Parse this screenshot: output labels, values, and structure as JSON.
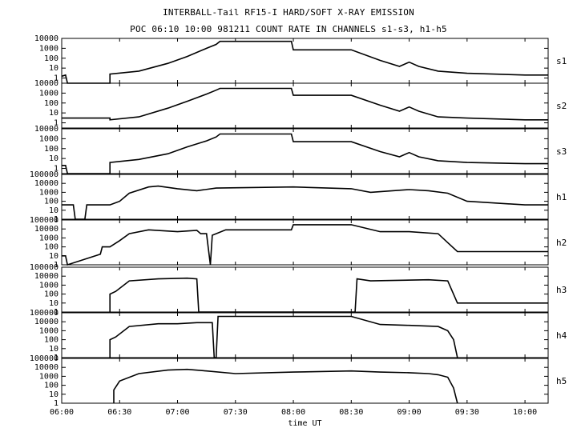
{
  "header": {
    "title": "INTERBALL-Tail RF15-I HARD/SOFT X-RAY EMISSION",
    "subtitle": "POC 06:10 10:00 981211  COUNT RATE IN CHANNELS s1-s3, h1-h5"
  },
  "chart_data": {
    "type": "line",
    "title": "INTERBALL-Tail RF15-I HARD/SOFT X-RAY EMISSION",
    "subtitle": "POC 06:10 10:00 981211  COUNT RATE IN CHANNELS s1-s3, h1-h5",
    "xlabel": "time UT",
    "x_ticks": [
      "06:00",
      "06:30",
      "07:00",
      "07:30",
      "08:00",
      "08:30",
      "09:00",
      "09:30",
      "10:00"
    ],
    "xlim": [
      "06:00",
      "10:12"
    ],
    "y_scale": "log",
    "grid": false,
    "panels": [
      {
        "name": "s1",
        "yticks": [
          "1",
          "10",
          "100",
          "1000",
          "10000"
        ],
        "ylim": [
          0.3,
          10000
        ],
        "x": [
          "06:00",
          "06:02",
          "06:03",
          "06:25",
          "06:25",
          "06:40",
          "06:55",
          "07:05",
          "07:15",
          "07:20",
          "07:22",
          "07:59",
          "08:00",
          "08:30",
          "08:45",
          "08:55",
          "09:00",
          "09:05",
          "09:15",
          "09:30",
          "10:00",
          "10:12"
        ],
        "y": [
          1.5,
          2,
          0.3,
          0.3,
          2.5,
          5,
          30,
          150,
          1000,
          2500,
          5000,
          5000,
          700,
          700,
          60,
          15,
          40,
          15,
          5,
          3,
          2,
          2
        ]
      },
      {
        "name": "s2",
        "yticks": [
          "1",
          "10",
          "100",
          "1000",
          "10000"
        ],
        "ylim": [
          0.3,
          10000
        ],
        "x": [
          "06:00",
          "06:25",
          "06:25",
          "06:40",
          "06:55",
          "07:05",
          "07:15",
          "07:20",
          "07:22",
          "07:59",
          "08:00",
          "08:30",
          "08:45",
          "08:55",
          "09:00",
          "09:05",
          "09:15",
          "09:30",
          "10:00",
          "10:12"
        ],
        "y": [
          3,
          3,
          2,
          4,
          30,
          150,
          800,
          2000,
          3000,
          3000,
          600,
          600,
          60,
          15,
          40,
          15,
          4,
          3,
          2,
          2
        ]
      },
      {
        "name": "s3",
        "yticks": [
          "1",
          "10",
          "100",
          "1000",
          "10000"
        ],
        "ylim": [
          0.3,
          10000
        ],
        "x": [
          "06:00",
          "06:02",
          "06:03",
          "06:25",
          "06:25",
          "06:40",
          "06:55",
          "07:05",
          "07:15",
          "07:20",
          "07:22",
          "07:59",
          "08:00",
          "08:30",
          "08:45",
          "08:55",
          "09:00",
          "09:05",
          "09:15",
          "09:30",
          "10:00",
          "10:12"
        ],
        "y": [
          2,
          2,
          0.3,
          0.3,
          4,
          8,
          30,
          150,
          600,
          1500,
          3000,
          3000,
          500,
          500,
          50,
          15,
          40,
          15,
          6,
          4,
          3,
          3
        ]
      },
      {
        "name": "h1",
        "yticks": [
          "1",
          "10",
          "100",
          "1000",
          "10000",
          "100000"
        ],
        "ylim": [
          1,
          100000
        ],
        "x": [
          "06:00",
          "06:06",
          "06:07",
          "06:12",
          "06:13",
          "06:25",
          "06:30",
          "06:35",
          "06:45",
          "06:50",
          "07:00",
          "07:10",
          "07:20",
          "08:00",
          "08:30",
          "08:40",
          "09:00",
          "09:10",
          "09:20",
          "09:30",
          "10:00",
          "10:12"
        ],
        "y": [
          40,
          40,
          1,
          1,
          40,
          40,
          100,
          800,
          4000,
          5000,
          2500,
          1500,
          3000,
          4000,
          2500,
          1000,
          2000,
          1500,
          800,
          100,
          40,
          40
        ]
      },
      {
        "name": "h2",
        "yticks": [
          "1",
          "10",
          "100",
          "1000",
          "10000",
          "100000"
        ],
        "ylim": [
          1,
          100000
        ],
        "x": [
          "06:00",
          "06:02",
          "06:03",
          "06:20",
          "06:21",
          "06:25",
          "06:30",
          "06:35",
          "06:45",
          "07:00",
          "07:10",
          "07:12",
          "07:15",
          "07:17",
          "07:18",
          "07:20",
          "07:25",
          "07:59",
          "08:00",
          "08:30",
          "08:45",
          "09:00",
          "09:15",
          "09:20",
          "09:25",
          "10:12"
        ],
        "y": [
          10,
          10,
          1,
          15,
          100,
          100,
          500,
          3000,
          8000,
          5000,
          7000,
          3000,
          3000,
          1,
          2000,
          3000,
          8000,
          8000,
          30000,
          30000,
          5000,
          5000,
          3000,
          300,
          30,
          30
        ]
      },
      {
        "name": "h3",
        "yticks": [
          "1",
          "10",
          "100",
          "1000",
          "10000",
          "100000"
        ],
        "ylim": [
          1,
          100000
        ],
        "x": [
          "06:25",
          "06:25",
          "06:28",
          "06:35",
          "06:50",
          "07:05",
          "07:10",
          "07:11",
          "08:32",
          "08:33",
          "08:40",
          "09:10",
          "09:20",
          "09:22",
          "09:25",
          "10:12"
        ],
        "y": [
          1,
          100,
          200,
          3000,
          5000,
          6000,
          5000,
          1,
          1,
          5000,
          3000,
          4000,
          3000,
          300,
          10,
          10
        ]
      },
      {
        "name": "h4",
        "yticks": [
          "1",
          "10",
          "100",
          "1000",
          "10000",
          "100000"
        ],
        "ylim": [
          1,
          100000
        ],
        "x": [
          "06:25",
          "06:25",
          "06:28",
          "06:35",
          "06:50",
          "07:00",
          "07:10",
          "07:18",
          "07:19",
          "07:20",
          "07:21",
          "07:25",
          "07:59",
          "08:00",
          "08:30",
          "08:45",
          "09:00",
          "09:15",
          "09:20",
          "09:23",
          "09:25"
        ],
        "y": [
          1,
          100,
          200,
          3000,
          6000,
          6000,
          8000,
          8000,
          1,
          1,
          40000,
          40000,
          40000,
          40000,
          40000,
          5000,
          4000,
          3000,
          1000,
          100,
          1
        ]
      },
      {
        "name": "h5",
        "yticks": [
          "1",
          "10",
          "100",
          "1000",
          "10000",
          "100000"
        ],
        "ylim": [
          1,
          100000
        ],
        "x": [
          "06:27",
          "06:27",
          "06:30",
          "06:40",
          "06:55",
          "07:05",
          "07:15",
          "07:30",
          "08:00",
          "08:30",
          "08:45",
          "09:00",
          "09:10",
          "09:15",
          "09:20",
          "09:23",
          "09:25"
        ],
        "y": [
          1,
          30,
          300,
          2000,
          5000,
          6000,
          4000,
          2000,
          3000,
          4000,
          3000,
          2500,
          2000,
          1500,
          800,
          50,
          1
        ]
      }
    ]
  }
}
